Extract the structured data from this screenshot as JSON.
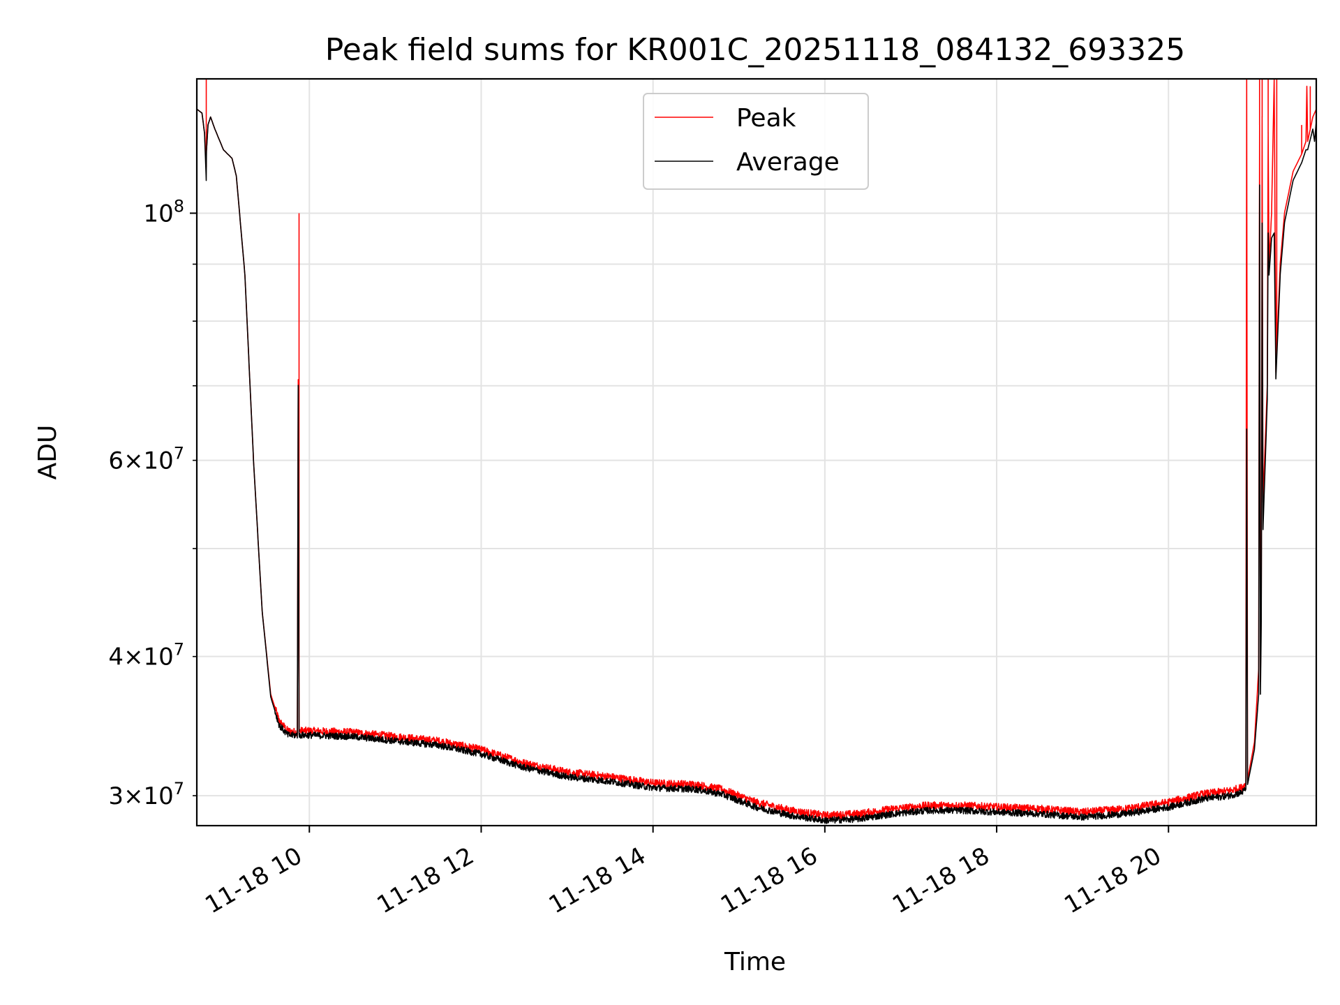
{
  "chart_data": {
    "type": "line",
    "title": "Peak field sums for KR001C_20251118_084132_693325",
    "xlabel": "Time",
    "ylabel": "ADU",
    "yscale": "log",
    "xlim": [
      8.69,
      21.72
    ],
    "ylim": [
      28200000,
      132000000
    ],
    "grid": true,
    "legend_position": "top-center",
    "xticks": [
      {
        "value": 10,
        "label": "11-18 10"
      },
      {
        "value": 12,
        "label": "11-18 12"
      },
      {
        "value": 14,
        "label": "11-18 14"
      },
      {
        "value": 16,
        "label": "11-18 16"
      },
      {
        "value": 18,
        "label": "11-18 18"
      },
      {
        "value": 20,
        "label": "11-18 20"
      }
    ],
    "yticks_major": [
      {
        "value": 100000000,
        "base": "10",
        "exp": "8"
      }
    ],
    "yticks_minor": [
      {
        "value": 30000000,
        "mant": "3",
        "base": "10",
        "exp": "7"
      },
      {
        "value": 40000000,
        "mant": "4",
        "base": "10",
        "exp": "7"
      },
      {
        "value": 50000000
      },
      {
        "value": 60000000,
        "mant": "6",
        "base": "10",
        "exp": "7"
      },
      {
        "value": 70000000
      },
      {
        "value": 80000000
      },
      {
        "value": 90000000
      }
    ],
    "series": [
      {
        "name": "Peak",
        "color": "#ff0000",
        "points": [
          [
            8.69,
            124000000
          ],
          [
            8.75,
            123000000
          ],
          [
            8.78,
            118000000
          ],
          [
            8.8,
            110000000
          ],
          [
            8.8,
            113000000
          ],
          [
            8.82,
            120000000
          ],
          [
            8.85,
            122000000
          ],
          [
            8.9,
            119000000
          ],
          [
            9.0,
            114000000
          ],
          [
            9.1,
            112000000
          ],
          [
            9.15,
            108000000
          ],
          [
            9.25,
            88000000
          ],
          [
            9.35,
            60000000
          ],
          [
            9.45,
            44000000
          ],
          [
            9.55,
            37000000
          ],
          [
            9.65,
            35000000
          ],
          [
            9.75,
            34300000
          ],
          [
            9.86,
            34200000
          ],
          [
            9.87,
            70500000
          ],
          [
            9.88,
            34300000
          ],
          [
            10.0,
            34300000
          ],
          [
            10.5,
            34200000
          ],
          [
            11.0,
            33900000
          ],
          [
            11.5,
            33600000
          ],
          [
            12.0,
            33000000
          ],
          [
            12.5,
            32100000
          ],
          [
            13.0,
            31500000
          ],
          [
            13.5,
            31200000
          ],
          [
            14.0,
            30800000
          ],
          [
            14.5,
            30700000
          ],
          [
            14.8,
            30400000
          ],
          [
            15.2,
            29600000
          ],
          [
            15.6,
            29100000
          ],
          [
            16.0,
            28800000
          ],
          [
            16.4,
            28900000
          ],
          [
            16.8,
            29200000
          ],
          [
            17.2,
            29400000
          ],
          [
            17.6,
            29400000
          ],
          [
            18.0,
            29300000
          ],
          [
            18.5,
            29200000
          ],
          [
            19.0,
            29000000
          ],
          [
            19.5,
            29200000
          ],
          [
            20.0,
            29600000
          ],
          [
            20.4,
            30100000
          ],
          [
            20.7,
            30300000
          ],
          [
            20.85,
            30500000
          ],
          [
            20.9,
            30700000
          ],
          [
            20.91,
            132000000
          ],
          [
            20.92,
            31000000
          ],
          [
            21.0,
            33500000
          ],
          [
            21.05,
            39000000
          ],
          [
            21.06,
            120000000
          ],
          [
            21.07,
            38000000
          ],
          [
            21.08,
            45000000
          ],
          [
            21.09,
            122000000
          ],
          [
            21.1,
            55000000
          ],
          [
            21.15,
            70000000
          ],
          [
            21.16,
            118000000
          ],
          [
            21.17,
            90000000
          ],
          [
            21.2,
            100000000
          ],
          [
            21.23,
            132000000
          ],
          [
            21.25,
            72000000
          ],
          [
            21.3,
            90000000
          ],
          [
            21.35,
            100000000
          ],
          [
            21.45,
            109000000
          ],
          [
            21.55,
            113000000
          ],
          [
            21.6,
            116000000
          ],
          [
            21.61,
            130000000
          ],
          [
            21.62,
            116000000
          ],
          [
            21.68,
            122000000
          ],
          [
            21.72,
            124000000
          ]
        ],
        "spikes": [
          [
            8.8,
            145000000
          ],
          [
            9.88,
            100000000
          ],
          [
            20.91,
            132000000
          ],
          [
            21.06,
            132000000
          ],
          [
            21.09,
            132000000
          ],
          [
            21.16,
            132000000
          ],
          [
            21.23,
            132000000
          ],
          [
            21.26,
            132000000
          ],
          [
            21.55,
            120000000
          ],
          [
            21.65,
            130000000
          ]
        ]
      },
      {
        "name": "Average",
        "color": "#000000",
        "points": [
          [
            8.69,
            124000000
          ],
          [
            8.75,
            123000000
          ],
          [
            8.78,
            118000000
          ],
          [
            8.8,
            107000000
          ],
          [
            8.8,
            113000000
          ],
          [
            8.82,
            120000000
          ],
          [
            8.85,
            122000000
          ],
          [
            8.9,
            119000000
          ],
          [
            9.0,
            114000000
          ],
          [
            9.1,
            112000000
          ],
          [
            9.15,
            108000000
          ],
          [
            9.25,
            88000000
          ],
          [
            9.35,
            60000000
          ],
          [
            9.45,
            44000000
          ],
          [
            9.55,
            36800000
          ],
          [
            9.65,
            34700000
          ],
          [
            9.75,
            34000000
          ],
          [
            9.86,
            34000000
          ],
          [
            9.87,
            70000000
          ],
          [
            9.88,
            34000000
          ],
          [
            10.0,
            34000000
          ],
          [
            10.5,
            33900000
          ],
          [
            11.0,
            33600000
          ],
          [
            11.5,
            33300000
          ],
          [
            12.0,
            32700000
          ],
          [
            12.5,
            31800000
          ],
          [
            13.0,
            31200000
          ],
          [
            13.5,
            30900000
          ],
          [
            14.0,
            30500000
          ],
          [
            14.5,
            30400000
          ],
          [
            14.8,
            30100000
          ],
          [
            15.2,
            29300000
          ],
          [
            15.6,
            28800000
          ],
          [
            16.0,
            28500000
          ],
          [
            16.4,
            28600000
          ],
          [
            16.8,
            28900000
          ],
          [
            17.2,
            29100000
          ],
          [
            17.6,
            29100000
          ],
          [
            18.0,
            29000000
          ],
          [
            18.5,
            28900000
          ],
          [
            19.0,
            28700000
          ],
          [
            19.5,
            28900000
          ],
          [
            20.0,
            29300000
          ],
          [
            20.4,
            29800000
          ],
          [
            20.7,
            30000000
          ],
          [
            20.85,
            30200000
          ],
          [
            20.9,
            30400000
          ],
          [
            20.91,
            64000000
          ],
          [
            20.92,
            30700000
          ],
          [
            21.0,
            33000000
          ],
          [
            21.05,
            37000000
          ],
          [
            21.06,
            106000000
          ],
          [
            21.07,
            37000000
          ],
          [
            21.08,
            43000000
          ],
          [
            21.09,
            98000000
          ],
          [
            21.1,
            52000000
          ],
          [
            21.15,
            68000000
          ],
          [
            21.16,
            96000000
          ],
          [
            21.17,
            88000000
          ],
          [
            21.2,
            95000000
          ],
          [
            21.23,
            96000000
          ],
          [
            21.25,
            71000000
          ],
          [
            21.3,
            88000000
          ],
          [
            21.35,
            98000000
          ],
          [
            21.45,
            107000000
          ],
          [
            21.55,
            111000000
          ],
          [
            21.6,
            114000000
          ],
          [
            21.62,
            114000000
          ],
          [
            21.68,
            119000000
          ],
          [
            21.7,
            116000000
          ],
          [
            21.72,
            121000000
          ]
        ]
      }
    ]
  }
}
